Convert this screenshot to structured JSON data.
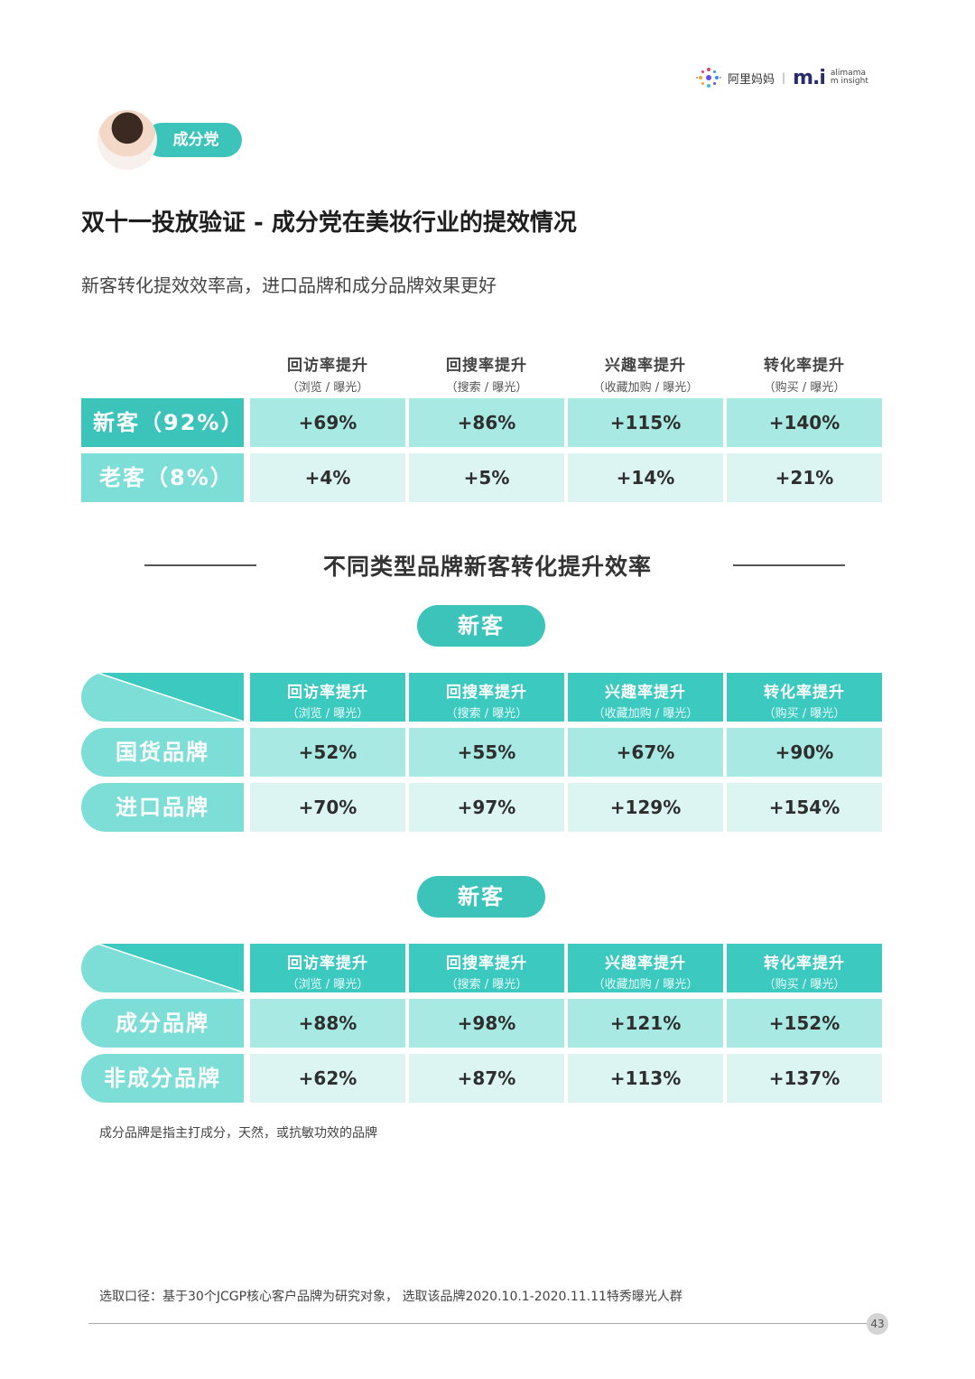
{
  "header": {
    "logo_alimama": "阿里妈妈",
    "logo_mi": "m.i",
    "logo_mi_sub_1": "alimama",
    "logo_mi_sub_2": "m insight",
    "logo_sep": "|"
  },
  "persona": {
    "label": "成分党"
  },
  "title": "双十一投放验证 - 成分党在美妆行业的提效情况",
  "subtitle": "新客转化提效效率高，进口品牌和成分品牌效果更好",
  "columns": [
    {
      "name": "回访率提升",
      "sub": "（浏览 / 曝光）"
    },
    {
      "name": "回搜率提升",
      "sub": "（搜索 / 曝光）"
    },
    {
      "name": "兴趣率提升",
      "sub": "（收藏加购 / 曝光）"
    },
    {
      "name": "转化率提升",
      "sub": "（购买 / 曝光）"
    }
  ],
  "table1": {
    "rows": [
      {
        "label": "新客（92%）",
        "values": [
          "+69%",
          "+86%",
          "+115%",
          "+140%"
        ]
      },
      {
        "label": "老客（8%）",
        "values": [
          "+4%",
          "+5%",
          "+14%",
          "+21%"
        ]
      }
    ]
  },
  "section_title": "不同类型品牌新客转化提升效率",
  "table2": {
    "pill": "新客",
    "rows": [
      {
        "label": "国货品牌",
        "values": [
          "+52%",
          "+55%",
          "+67%",
          "+90%"
        ]
      },
      {
        "label": "进口品牌",
        "values": [
          "+70%",
          "+97%",
          "+129%",
          "+154%"
        ]
      }
    ]
  },
  "table3": {
    "pill": "新客",
    "rows": [
      {
        "label": "成分品牌",
        "values": [
          "+88%",
          "+98%",
          "+121%",
          "+152%"
        ]
      },
      {
        "label": "非成分品牌",
        "values": [
          "+62%",
          "+87%",
          "+113%",
          "+137%"
        ]
      }
    ]
  },
  "footnote": "成分品牌是指主打成分，天然，或抗敏功效的品牌",
  "source_note": "选取口径：基于30个JCGP核心客户品牌为研究对象， 选取该品牌2020.10.1-2020.11.11特秀曝光人群",
  "page_number": "43",
  "colors": {
    "teal": "#3cc4bb",
    "teal_light": "#7dded7",
    "cell_dark": "#a9e9e3",
    "cell_light": "#dcf5f3"
  }
}
